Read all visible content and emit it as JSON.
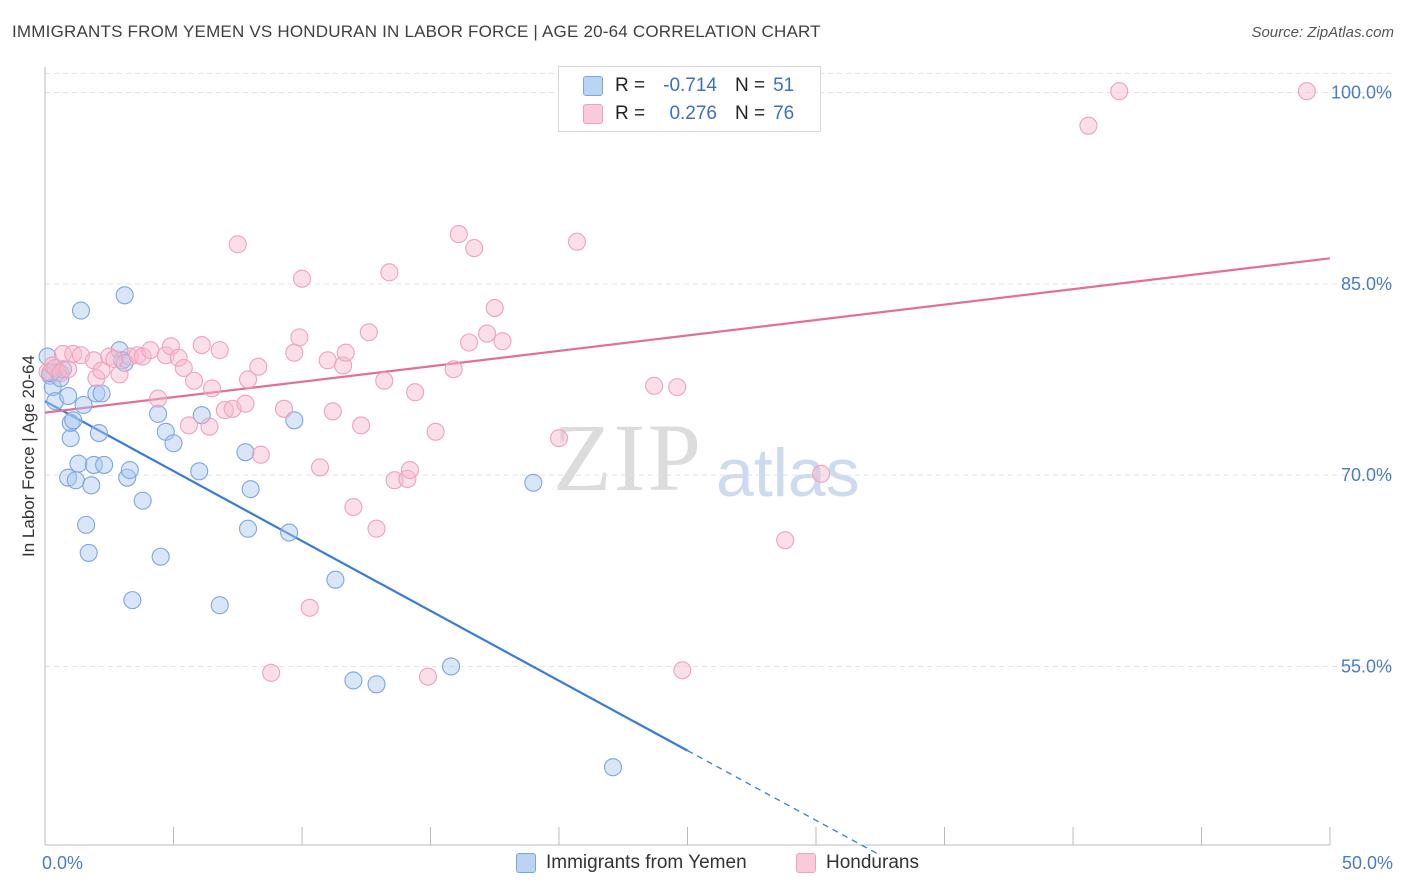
{
  "header": {
    "title": "IMMIGRANTS FROM YEMEN VS HONDURAN IN LABOR FORCE | AGE 20-64 CORRELATION CHART",
    "source": "Source: ZipAtlas.com"
  },
  "watermark": {
    "zip": "ZIP",
    "atlas": "atlas"
  },
  "legend": {
    "rows": [
      {
        "r_label": "R =",
        "r_value": "-0.714",
        "n_label": "N =",
        "n_value": "51",
        "color": "#a9c8f0"
      },
      {
        "r_label": "R =",
        "r_value": "0.276",
        "n_label": "N =",
        "n_value": "76",
        "color": "#f6b8cc"
      }
    ]
  },
  "bottom_legend": {
    "yemen": "Immigrants from Yemen",
    "honduran": "Hondurans"
  },
  "chart_data": {
    "type": "scatter",
    "title": "IMMIGRANTS FROM YEMEN VS HONDURAN IN LABOR FORCE | AGE 20-64 CORRELATION CHART",
    "xlabel": "",
    "ylabel": "In Labor Force | Age 20-64",
    "xlim": [
      0,
      50
    ],
    "ylim": [
      41,
      102
    ],
    "x_tick_labels": [
      "0.0%",
      "50.0%"
    ],
    "y_ticks": [
      55,
      70,
      85,
      100
    ],
    "y_tick_labels": [
      "55.0%",
      "70.0%",
      "85.0%",
      "100.0%"
    ],
    "grid": true,
    "legend_position": "top-center",
    "colors": {
      "yemen": "#3a7bd5",
      "honduran": "#e0709b"
    },
    "series": [
      {
        "name": "Immigrants from Yemen",
        "r": -0.714,
        "n": 51,
        "trend": {
          "x0": 0.0,
          "y0": 75.8,
          "x1": 25.0,
          "y1": 48.4,
          "dashed_to_x": 32.5,
          "dashed_to_y": 40.2
        },
        "points": [
          [
            0.1,
            79.3
          ],
          [
            0.2,
            77.8
          ],
          [
            0.3,
            76.9
          ],
          [
            0.4,
            75.8
          ],
          [
            0.5,
            78.1
          ],
          [
            0.6,
            77.6
          ],
          [
            0.7,
            78.3
          ],
          [
            0.9,
            69.8
          ],
          [
            0.9,
            76.2
          ],
          [
            1.0,
            72.9
          ],
          [
            1.0,
            74.1
          ],
          [
            1.1,
            74.3
          ],
          [
            1.2,
            69.6
          ],
          [
            1.3,
            70.9
          ],
          [
            1.4,
            82.9
          ],
          [
            1.5,
            75.5
          ],
          [
            1.6,
            66.1
          ],
          [
            1.7,
            63.9
          ],
          [
            1.8,
            69.2
          ],
          [
            1.9,
            70.8
          ],
          [
            2.0,
            76.4
          ],
          [
            2.1,
            73.3
          ],
          [
            2.2,
            76.4
          ],
          [
            2.3,
            70.8
          ],
          [
            2.9,
            79.8
          ],
          [
            3.0,
            79.0
          ],
          [
            3.1,
            78.8
          ],
          [
            3.1,
            84.1
          ],
          [
            3.2,
            69.8
          ],
          [
            3.3,
            70.4
          ],
          [
            3.4,
            60.2
          ],
          [
            3.8,
            68.0
          ],
          [
            4.4,
            74.8
          ],
          [
            4.5,
            63.6
          ],
          [
            4.7,
            73.4
          ],
          [
            5.0,
            72.5
          ],
          [
            6.0,
            70.3
          ],
          [
            6.1,
            74.7
          ],
          [
            6.8,
            59.8
          ],
          [
            7.8,
            71.8
          ],
          [
            7.9,
            65.8
          ],
          [
            8.0,
            68.9
          ],
          [
            9.5,
            65.5
          ],
          [
            9.7,
            74.3
          ],
          [
            11.3,
            61.8
          ],
          [
            12.0,
            53.9
          ],
          [
            12.9,
            53.6
          ],
          [
            15.8,
            55.0
          ],
          [
            19.0,
            69.4
          ],
          [
            22.1,
            47.1
          ],
          [
            0.2,
            78.0
          ]
        ]
      },
      {
        "name": "Hondurans",
        "r": 0.276,
        "n": 76,
        "trend": {
          "x0": 0.0,
          "y0": 74.9,
          "x1": 50.0,
          "y1": 87.0
        },
        "points": [
          [
            0.1,
            78.1
          ],
          [
            0.3,
            78.6
          ],
          [
            0.4,
            78.4
          ],
          [
            0.6,
            78.0
          ],
          [
            0.7,
            79.5
          ],
          [
            0.9,
            78.3
          ],
          [
            1.1,
            79.5
          ],
          [
            1.4,
            79.4
          ],
          [
            1.9,
            79.0
          ],
          [
            2.0,
            77.6
          ],
          [
            2.2,
            78.2
          ],
          [
            2.5,
            79.3
          ],
          [
            2.7,
            79.1
          ],
          [
            2.9,
            77.9
          ],
          [
            3.3,
            79.3
          ],
          [
            3.6,
            79.4
          ],
          [
            3.8,
            79.3
          ],
          [
            4.1,
            79.8
          ],
          [
            4.4,
            76.0
          ],
          [
            4.7,
            79.4
          ],
          [
            4.9,
            80.1
          ],
          [
            5.2,
            79.2
          ],
          [
            5.4,
            78.4
          ],
          [
            5.6,
            73.9
          ],
          [
            5.8,
            77.4
          ],
          [
            6.1,
            80.2
          ],
          [
            6.4,
            73.8
          ],
          [
            6.5,
            76.8
          ],
          [
            6.8,
            79.8
          ],
          [
            7.0,
            75.1
          ],
          [
            7.3,
            75.2
          ],
          [
            7.5,
            88.1
          ],
          [
            7.8,
            75.6
          ],
          [
            7.9,
            77.5
          ],
          [
            8.3,
            78.5
          ],
          [
            8.4,
            71.6
          ],
          [
            8.8,
            54.5
          ],
          [
            9.3,
            75.2
          ],
          [
            9.7,
            79.6
          ],
          [
            9.9,
            80.8
          ],
          [
            10.0,
            85.4
          ],
          [
            10.3,
            59.6
          ],
          [
            10.7,
            70.6
          ],
          [
            11.0,
            79.0
          ],
          [
            11.2,
            75.0
          ],
          [
            11.6,
            78.6
          ],
          [
            11.7,
            79.6
          ],
          [
            12.0,
            67.5
          ],
          [
            12.3,
            73.9
          ],
          [
            12.6,
            81.2
          ],
          [
            12.9,
            65.8
          ],
          [
            13.2,
            77.4
          ],
          [
            13.4,
            85.9
          ],
          [
            13.6,
            69.6
          ],
          [
            14.1,
            69.7
          ],
          [
            14.2,
            70.4
          ],
          [
            14.4,
            76.5
          ],
          [
            14.9,
            54.2
          ],
          [
            15.2,
            73.4
          ],
          [
            15.9,
            78.3
          ],
          [
            16.1,
            88.9
          ],
          [
            16.5,
            80.4
          ],
          [
            16.7,
            87.8
          ],
          [
            17.2,
            81.1
          ],
          [
            17.5,
            83.1
          ],
          [
            17.8,
            80.5
          ],
          [
            20.0,
            72.9
          ],
          [
            20.7,
            88.3
          ],
          [
            23.7,
            77.0
          ],
          [
            24.6,
            76.9
          ],
          [
            24.8,
            54.7
          ],
          [
            28.8,
            64.9
          ],
          [
            30.2,
            70.1
          ],
          [
            40.6,
            97.4
          ],
          [
            41.8,
            100.1
          ],
          [
            49.1,
            100.1
          ]
        ]
      }
    ]
  }
}
